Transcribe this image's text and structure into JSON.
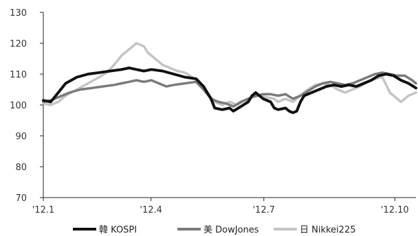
{
  "chart_data": {
    "type": "line",
    "title": "",
    "xlabel": "",
    "ylabel": "",
    "ylim": [
      70,
      130
    ],
    "yticks": [
      70,
      80,
      90,
      100,
      110,
      120,
      130
    ],
    "xticks": [
      {
        "label": "'12.1",
        "t": 0
      },
      {
        "label": "'12.4",
        "t": 0.2891
      },
      {
        "label": "'12.7",
        "t": 0.5918
      },
      {
        "label": "'12.10",
        "t": 0.9433
      }
    ],
    "grid": false,
    "legend_position": "bottom",
    "series": [
      {
        "name": "韓 KOSPI",
        "color": "#111111",
        "points": [
          [
            0,
            101.5
          ],
          [
            0.02,
            101
          ],
          [
            0.04,
            104
          ],
          [
            0.06,
            107
          ],
          [
            0.09,
            109
          ],
          [
            0.12,
            110
          ],
          [
            0.15,
            110.5
          ],
          [
            0.18,
            111
          ],
          [
            0.21,
            111.5
          ],
          [
            0.23,
            112
          ],
          [
            0.25,
            111.5
          ],
          [
            0.27,
            111
          ],
          [
            0.29,
            111.5
          ],
          [
            0.32,
            111
          ],
          [
            0.35,
            110
          ],
          [
            0.38,
            109
          ],
          [
            0.41,
            108.5
          ],
          [
            0.43,
            106
          ],
          [
            0.45,
            102
          ],
          [
            0.46,
            99
          ],
          [
            0.48,
            98.5
          ],
          [
            0.5,
            99
          ],
          [
            0.51,
            98
          ],
          [
            0.53,
            99.5
          ],
          [
            0.55,
            101
          ],
          [
            0.56,
            103
          ],
          [
            0.57,
            104
          ],
          [
            0.59,
            102
          ],
          [
            0.61,
            101
          ],
          [
            0.62,
            99
          ],
          [
            0.63,
            98.5
          ],
          [
            0.65,
            99
          ],
          [
            0.66,
            98
          ],
          [
            0.67,
            97.5
          ],
          [
            0.68,
            98
          ],
          [
            0.69,
            101
          ],
          [
            0.7,
            103
          ],
          [
            0.72,
            104
          ],
          [
            0.74,
            105
          ],
          [
            0.76,
            106
          ],
          [
            0.78,
            106.5
          ],
          [
            0.8,
            106
          ],
          [
            0.82,
            106.5
          ],
          [
            0.84,
            106
          ],
          [
            0.86,
            107
          ],
          [
            0.88,
            108
          ],
          [
            0.9,
            109.5
          ],
          [
            0.92,
            110
          ],
          [
            0.94,
            109.5
          ],
          [
            0.96,
            108
          ],
          [
            0.98,
            107
          ],
          [
            1,
            105.5
          ]
        ]
      },
      {
        "name": "美 DowJones",
        "color": "#7a7a7a",
        "points": [
          [
            0,
            101
          ],
          [
            0.02,
            101.5
          ],
          [
            0.04,
            102.5
          ],
          [
            0.07,
            104
          ],
          [
            0.1,
            105
          ],
          [
            0.13,
            105.5
          ],
          [
            0.16,
            106
          ],
          [
            0.19,
            106.5
          ],
          [
            0.21,
            107
          ],
          [
            0.23,
            107.5
          ],
          [
            0.25,
            108
          ],
          [
            0.27,
            107.5
          ],
          [
            0.29,
            108
          ],
          [
            0.31,
            107
          ],
          [
            0.33,
            106
          ],
          [
            0.35,
            106.5
          ],
          [
            0.38,
            107
          ],
          [
            0.41,
            107.5
          ],
          [
            0.43,
            105
          ],
          [
            0.45,
            102
          ],
          [
            0.47,
            101
          ],
          [
            0.49,
            100.5
          ],
          [
            0.51,
            99.5
          ],
          [
            0.53,
            101
          ],
          [
            0.55,
            102
          ],
          [
            0.57,
            103
          ],
          [
            0.59,
            103.5
          ],
          [
            0.61,
            103.5
          ],
          [
            0.63,
            103
          ],
          [
            0.65,
            103.5
          ],
          [
            0.67,
            102
          ],
          [
            0.69,
            103
          ],
          [
            0.71,
            104.5
          ],
          [
            0.73,
            106
          ],
          [
            0.75,
            107
          ],
          [
            0.77,
            107.5
          ],
          [
            0.79,
            107
          ],
          [
            0.81,
            106.5
          ],
          [
            0.83,
            107
          ],
          [
            0.85,
            108
          ],
          [
            0.87,
            109
          ],
          [
            0.89,
            110
          ],
          [
            0.91,
            110.5
          ],
          [
            0.93,
            110
          ],
          [
            0.95,
            109.5
          ],
          [
            0.97,
            109.5
          ],
          [
            0.99,
            108
          ],
          [
            1,
            107
          ]
        ]
      },
      {
        "name": "日 Nikkei225",
        "color": "#c4c4c4",
        "points": [
          [
            0,
            100.5
          ],
          [
            0.02,
            100
          ],
          [
            0.04,
            101
          ],
          [
            0.06,
            103
          ],
          [
            0.09,
            105
          ],
          [
            0.12,
            107
          ],
          [
            0.15,
            109
          ],
          [
            0.17,
            110.5
          ],
          [
            0.19,
            113
          ],
          [
            0.21,
            116
          ],
          [
            0.23,
            118
          ],
          [
            0.25,
            120
          ],
          [
            0.27,
            119
          ],
          [
            0.28,
            117
          ],
          [
            0.3,
            115
          ],
          [
            0.32,
            113
          ],
          [
            0.34,
            112
          ],
          [
            0.36,
            111
          ],
          [
            0.38,
            110.5
          ],
          [
            0.4,
            109
          ],
          [
            0.42,
            107
          ],
          [
            0.44,
            104
          ],
          [
            0.46,
            101
          ],
          [
            0.48,
            100
          ],
          [
            0.5,
            101
          ],
          [
            0.52,
            100
          ],
          [
            0.54,
            101.5
          ],
          [
            0.56,
            102.5
          ],
          [
            0.58,
            103
          ],
          [
            0.6,
            102.5
          ],
          [
            0.62,
            102
          ],
          [
            0.63,
            101
          ],
          [
            0.65,
            102
          ],
          [
            0.67,
            101
          ],
          [
            0.69,
            103
          ],
          [
            0.71,
            105
          ],
          [
            0.73,
            106.5
          ],
          [
            0.75,
            107
          ],
          [
            0.77,
            106.5
          ],
          [
            0.79,
            105
          ],
          [
            0.81,
            104
          ],
          [
            0.83,
            105
          ],
          [
            0.85,
            106
          ],
          [
            0.87,
            107.5
          ],
          [
            0.89,
            108.5
          ],
          [
            0.91,
            109
          ],
          [
            0.93,
            104
          ],
          [
            0.95,
            102
          ],
          [
            0.96,
            101
          ],
          [
            0.98,
            103
          ],
          [
            1,
            104
          ]
        ]
      }
    ]
  }
}
